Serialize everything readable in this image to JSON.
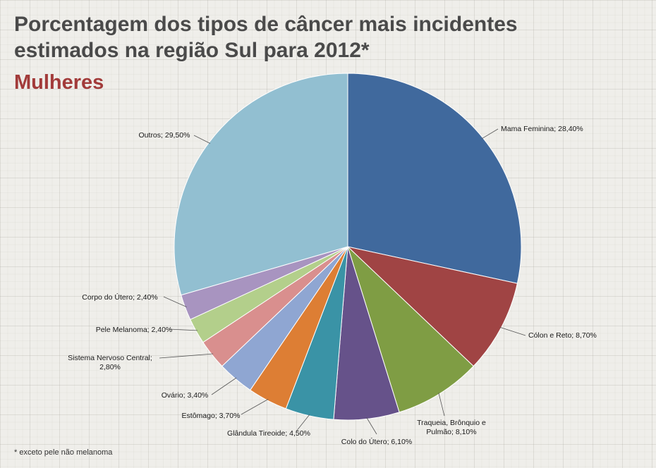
{
  "title": "Porcentagem dos tipos de câncer mais incidentes estimados na região Sul para 2012*",
  "subtitle": "Mulheres",
  "footnote": "* exceto pele não melanoma",
  "chart_data": {
    "type": "pie",
    "title": "Porcentagem dos tipos de câncer mais incidentes estimados na região Sul para 2012*",
    "subtitle": "Mulheres",
    "slices": [
      {
        "label": "Mama Feminina",
        "value": 28.4,
        "text": "Mama Feminina; 28,40%",
        "color": "#40699d"
      },
      {
        "label": "Cólon e Reto",
        "value": 8.7,
        "text": "Cólon e Reto; 8,70%",
        "color": "#a04444"
      },
      {
        "label": "Traqueia, Brônquio e Pulmão",
        "value": 8.1,
        "text": "Traqueia, Brônquio e Pulmão; 8,10%",
        "color": "#7f9d44"
      },
      {
        "label": "Colo do Útero",
        "value": 6.1,
        "text": "Colo do Útero; 6,10%",
        "color": "#66528a"
      },
      {
        "label": "Glândula Tireoide",
        "value": 4.5,
        "text": "Glândula  Tireoide; 4,50%",
        "color": "#3a93a6"
      },
      {
        "label": "Estômago",
        "value": 3.7,
        "text": "Estômago; 3,70%",
        "color": "#dd7e34"
      },
      {
        "label": "Ovário",
        "value": 3.4,
        "text": "Ovário; 3,40%",
        "color": "#8fa6d2"
      },
      {
        "label": "Sistema Nervoso Central",
        "value": 2.8,
        "text": "Sistema Nervoso Central; 2,80%",
        "color": "#d98f8e"
      },
      {
        "label": "Pele Melanoma",
        "value": 2.4,
        "text": "Pele Melanoma; 2,40%",
        "color": "#b3cf8b"
      },
      {
        "label": "Corpo do Útero",
        "value": 2.4,
        "text": "Corpo do Útero; 2,40%",
        "color": "#a894c0"
      },
      {
        "label": "Outros",
        "value": 29.5,
        "text": "Outros; 29,50%",
        "color": "#92bfd1"
      }
    ]
  }
}
